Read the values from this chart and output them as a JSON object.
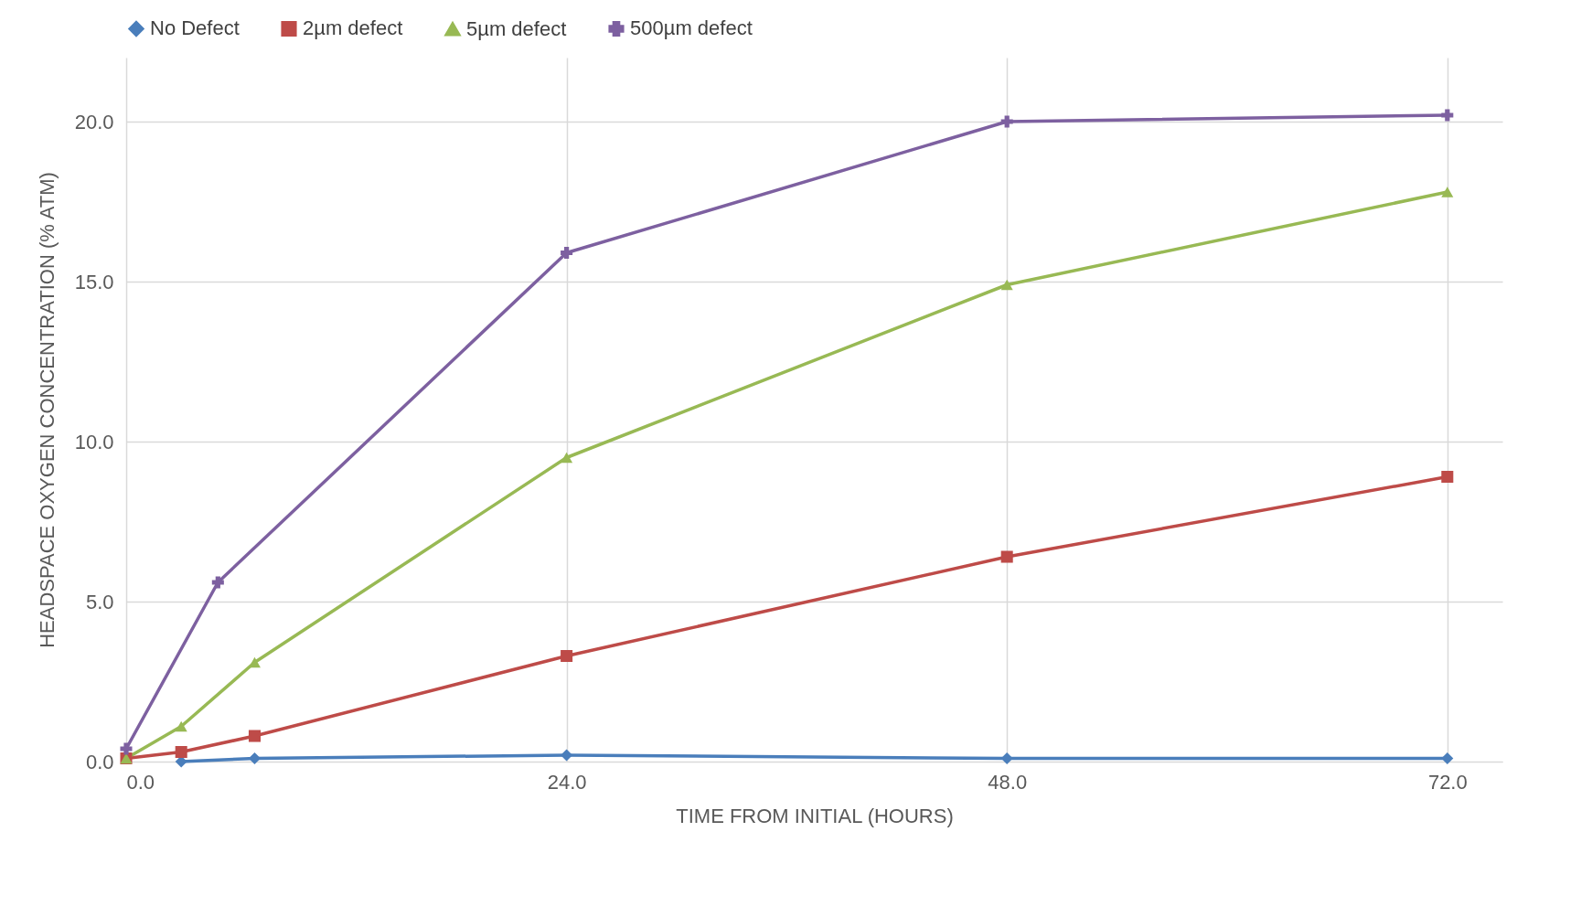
{
  "chart_data": {
    "type": "line",
    "xlabel": "TIME FROM INITIAL (HOURS)",
    "ylabel": "HEADSPACE OXYGEN CONCENTRATION (% ATM)",
    "xlim": [
      0,
      75
    ],
    "ylim": [
      0,
      22
    ],
    "xticks": [
      {
        "value": 0,
        "label": "0.0"
      },
      {
        "value": 24,
        "label": "24.0"
      },
      {
        "value": 48,
        "label": "48.0"
      },
      {
        "value": 72,
        "label": "72.0"
      }
    ],
    "yticks": [
      {
        "value": 0,
        "label": "0.0"
      },
      {
        "value": 5,
        "label": "5.0"
      },
      {
        "value": 10,
        "label": "10.0"
      },
      {
        "value": 15,
        "label": "15.0"
      },
      {
        "value": 20,
        "label": "20.0"
      }
    ],
    "grid": true,
    "legend": "top",
    "line_style": "solid",
    "series": [
      {
        "name": "No Defect",
        "color": "#4a7ebb",
        "marker": "diamond",
        "x": [
          3,
          7,
          24,
          48,
          72
        ],
        "values": [
          0.0,
          0.1,
          0.2,
          0.1,
          0.1
        ]
      },
      {
        "name": "2µm defect",
        "color": "#be4b48",
        "marker": "square",
        "x": [
          0,
          3,
          7,
          24,
          48,
          72
        ],
        "values": [
          0.1,
          0.3,
          0.8,
          3.3,
          6.4,
          8.9
        ]
      },
      {
        "name": "5µm defect",
        "color": "#98b954",
        "marker": "triangle",
        "x": [
          0,
          3,
          7,
          24,
          48,
          72
        ],
        "values": [
          0.1,
          1.1,
          3.1,
          9.5,
          14.9,
          17.8
        ]
      },
      {
        "name": "500µm defect",
        "color": "#7d60a0",
        "marker": "cross",
        "x": [
          0,
          5,
          24,
          48,
          72
        ],
        "values": [
          0.4,
          5.6,
          15.9,
          20.0,
          20.2
        ]
      }
    ]
  }
}
